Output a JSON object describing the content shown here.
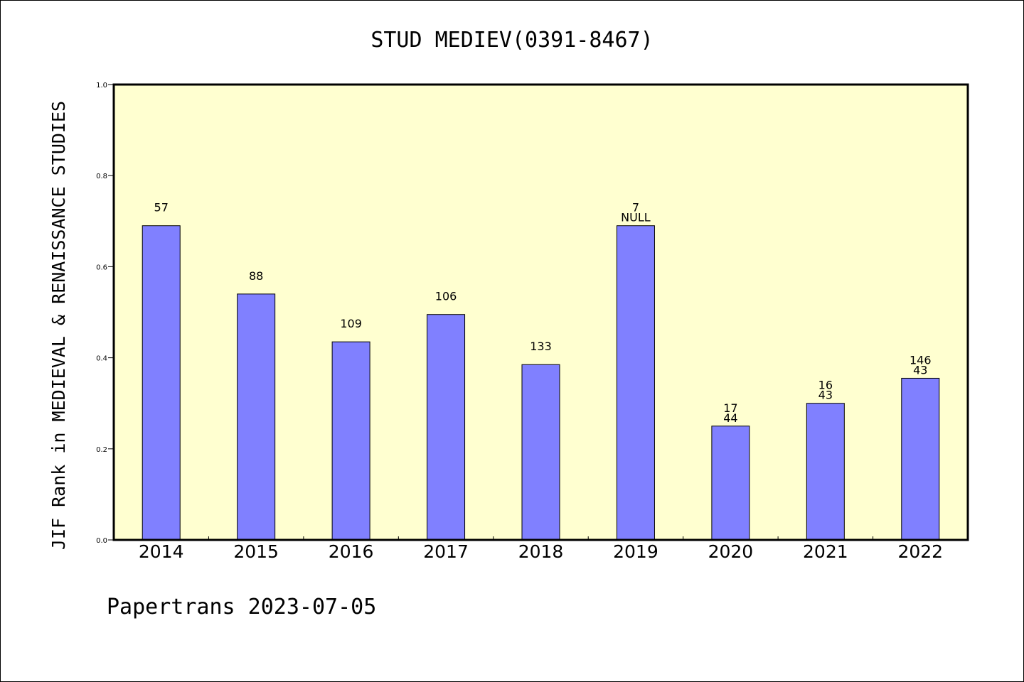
{
  "chart_data": {
    "type": "bar",
    "title": "STUD MEDIEV(0391-8467)",
    "ylabel": "JIF Rank in MEDIEVAL & RENAISSANCE STUDIES",
    "xlabel": "",
    "ylim": [
      0,
      1.0
    ],
    "yticks": [
      "0.0",
      "0.2",
      "0.4",
      "0.6",
      "0.8",
      "1.0"
    ],
    "categories": [
      "2014",
      "2015",
      "2016",
      "2017",
      "2018",
      "2019",
      "2020",
      "2021",
      "2022"
    ],
    "values": [
      0.69,
      0.54,
      0.435,
      0.495,
      0.385,
      0.69,
      0.25,
      0.3,
      0.355
    ],
    "labels": [
      [
        "57"
      ],
      [
        "88"
      ],
      [
        "109"
      ],
      [
        "106"
      ],
      [
        "133"
      ],
      [
        "7",
        "NULL"
      ],
      [
        "17",
        "44"
      ],
      [
        "16",
        "43"
      ],
      [
        "146",
        "43"
      ]
    ],
    "colors": {
      "bar": "#8080ff",
      "plot_bg": "#ffffd0"
    },
    "grid": false
  },
  "footer": "Papertrans 2023-07-05"
}
